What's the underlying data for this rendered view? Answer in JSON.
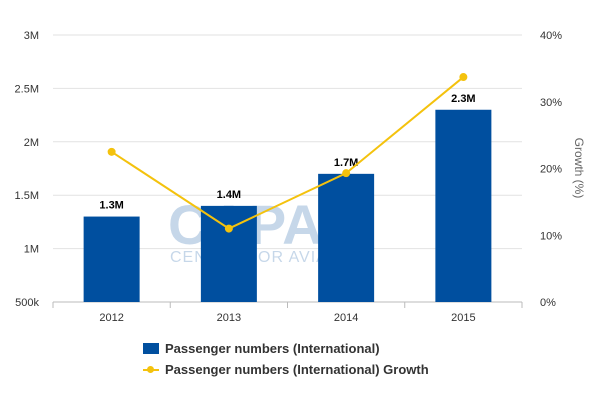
{
  "chart_data": {
    "type": "bar",
    "categories": [
      "2012",
      "2013",
      "2014",
      "2015"
    ],
    "series": [
      {
        "name": "Passenger numbers (International)",
        "type": "bar",
        "axis": "left",
        "color": "#004f9f",
        "values": [
          1.3,
          1.4,
          1.7,
          2.3
        ],
        "labels": [
          "1.3M",
          "1.4M",
          "1.7M",
          "2.3M"
        ]
      },
      {
        "name": "Passenger numbers (International) Growth",
        "type": "line",
        "axis": "right",
        "color": "#f4c20d",
        "values": [
          22.5,
          11.0,
          19.3,
          33.7
        ]
      }
    ],
    "y_left": {
      "ylim": [
        0.5,
        3
      ],
      "ticks": [
        0.5,
        1,
        1.5,
        2,
        2.5,
        3
      ],
      "tick_labels": [
        "500k",
        "1M",
        "1.5M",
        "2M",
        "2.5M",
        "3M"
      ]
    },
    "y_right": {
      "label": "Growth (%)",
      "ylim": [
        0,
        40
      ],
      "ticks": [
        0,
        10,
        20,
        30,
        40
      ],
      "tick_labels": [
        "0%",
        "10%",
        "20%",
        "30%",
        "40%"
      ]
    },
    "grid": true,
    "legend": "bottom",
    "watermark": "CAPA CENTRE FOR AVIATION"
  }
}
